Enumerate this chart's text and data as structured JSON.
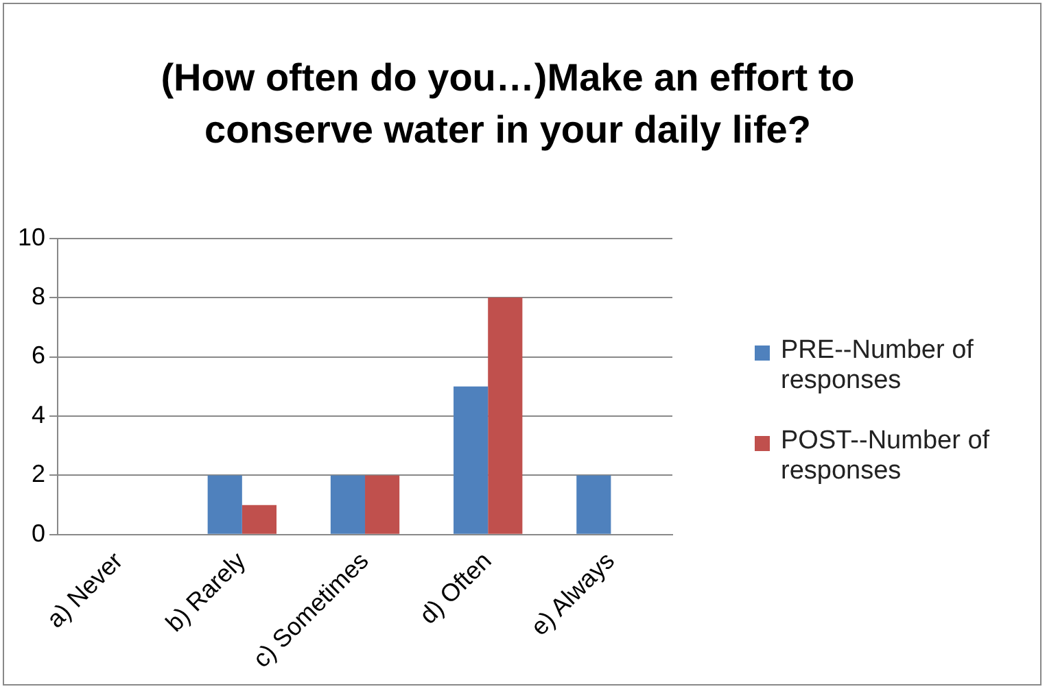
{
  "chart_data": {
    "type": "bar",
    "title": "(How often do you…)Make an effort to conserve water in your daily life?",
    "categories": [
      "a) Never",
      "b) Rarely",
      "c) Sometimes",
      "d) Often",
      "e) Always"
    ],
    "series": [
      {
        "name": "PRE--Number of responses",
        "color": "#4f81bd",
        "values": [
          0,
          2,
          2,
          5,
          2
        ]
      },
      {
        "name": "POST--Number of responses",
        "color": "#c0504d",
        "values": [
          0,
          1,
          2,
          8,
          0
        ]
      }
    ],
    "ylim": [
      0,
      10
    ],
    "yticks": [
      0,
      2,
      4,
      6,
      8,
      10
    ],
    "grid": "y",
    "legend": "right"
  }
}
